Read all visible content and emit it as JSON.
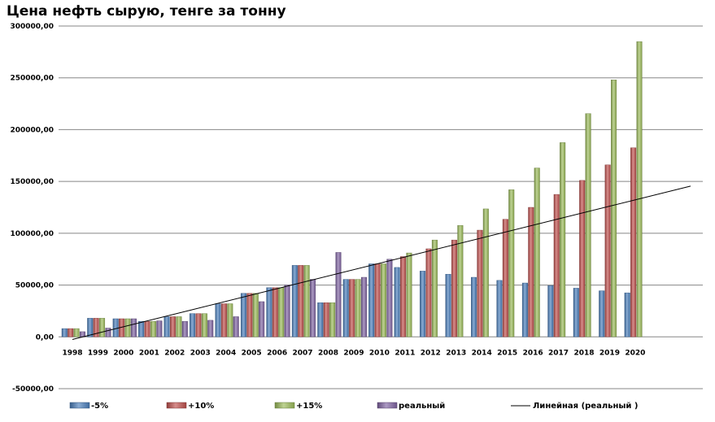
{
  "chart_data": {
    "type": "bar",
    "title": "Цена нефть сырую, тенге за тонну",
    "categories": [
      "1998",
      "1999",
      "2000",
      "2001",
      "2002",
      "2003",
      "2004",
      "2005",
      "2006",
      "2007",
      "2008",
      "2009",
      "2010",
      "2011",
      "2012",
      "2013",
      "2014",
      "2015",
      "2016",
      "2017",
      "2018",
      "2019",
      "2020"
    ],
    "series": [
      {
        "name": "-5%",
        "color": "#4a7ebb",
        "values": [
          8000,
          18000,
          17500,
          15000,
          19500,
          22500,
          32000,
          42000,
          47500,
          69000,
          33000,
          55500,
          70500,
          67000,
          63500,
          60500,
          57500,
          54500,
          52000,
          49500,
          47000,
          44500,
          42500
        ]
      },
      {
        "name": "+10%",
        "color": "#c0504d",
        "values": [
          8000,
          18000,
          17500,
          15000,
          19500,
          22500,
          32000,
          42000,
          47500,
          69000,
          33000,
          55500,
          70500,
          77500,
          85000,
          93500,
          103000,
          113500,
          125000,
          137500,
          151000,
          166000,
          182500
        ]
      },
      {
        "name": "+15%",
        "color": "#9bbb59",
        "values": [
          8000,
          18000,
          17500,
          15000,
          19500,
          22500,
          32000,
          42000,
          47500,
          69000,
          33000,
          55500,
          70500,
          81000,
          93500,
          107500,
          123500,
          142000,
          163000,
          187500,
          215500,
          248000,
          285000
        ]
      },
      {
        "name": "реальный",
        "color": "#8064a2",
        "values": [
          5000,
          8500,
          17500,
          15500,
          15000,
          16000,
          19500,
          34000,
          50000,
          55500,
          81500,
          57500,
          75000,
          null,
          null,
          null,
          null,
          null,
          null,
          null,
          null,
          null,
          null
        ]
      }
    ],
    "trendline": {
      "name": "Линейная (реальный )",
      "color": "#000000",
      "from_category": "1998",
      "start_value": -2500,
      "end_value": 145500
    },
    "y_ticks": [
      "300000,00",
      "250000,00",
      "200000,00",
      "150000,00",
      "100000,00",
      "50000,00",
      "0,00",
      "-50000,00"
    ],
    "ylim": [
      -50000,
      300000
    ],
    "grid": true,
    "legend_position": "bottom",
    "xlabel": "",
    "ylabel": ""
  }
}
